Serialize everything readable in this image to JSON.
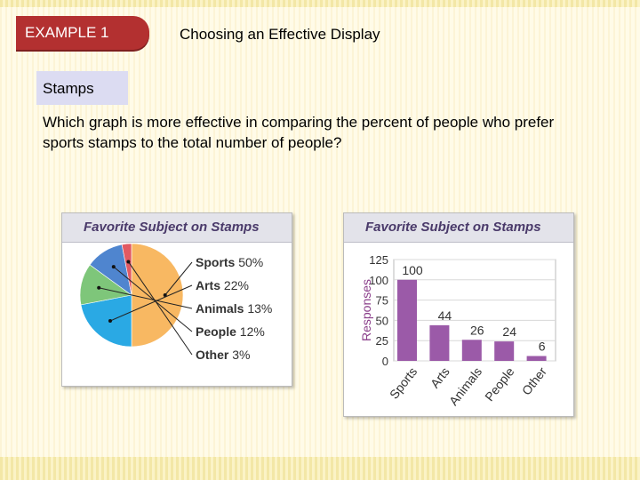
{
  "header": {
    "example_label": "EXAMPLE 1",
    "title": "Choosing an Effective Display"
  },
  "topic": {
    "label": "Stamps"
  },
  "question": {
    "text": "Which graph is more effective in comparing the percent of people who prefer sports stamps to the total number of people?"
  },
  "colors": {
    "tab": "#b33030",
    "topic_box": "#dcdcf2",
    "bar": "#9b5aa8",
    "pie": [
      "#2aa9e4",
      "#7ec67a",
      "#4f85cf",
      "#e25a63",
      "#f8b862"
    ]
  },
  "chart_data": [
    {
      "type": "pie",
      "title": "Favorite Subject on Stamps",
      "slices": [
        {
          "label": "Sports",
          "value": 50,
          "text": "50%"
        },
        {
          "label": "Arts",
          "value": 22,
          "text": "22%"
        },
        {
          "label": "Animals",
          "value": 13,
          "text": "13%"
        },
        {
          "label": "People",
          "value": 12,
          "text": "12%"
        },
        {
          "label": "Other",
          "value": 3,
          "text": "3%"
        }
      ]
    },
    {
      "type": "bar",
      "title": "Favorite Subject on Stamps",
      "ylabel": "Responses",
      "categories": [
        "Sports",
        "Arts",
        "Animals",
        "People",
        "Other"
      ],
      "values": [
        100,
        44,
        26,
        24,
        6
      ],
      "yticks": [
        "0",
        "25",
        "50",
        "75",
        "100",
        "125"
      ],
      "ylim": [
        0,
        125
      ]
    }
  ]
}
